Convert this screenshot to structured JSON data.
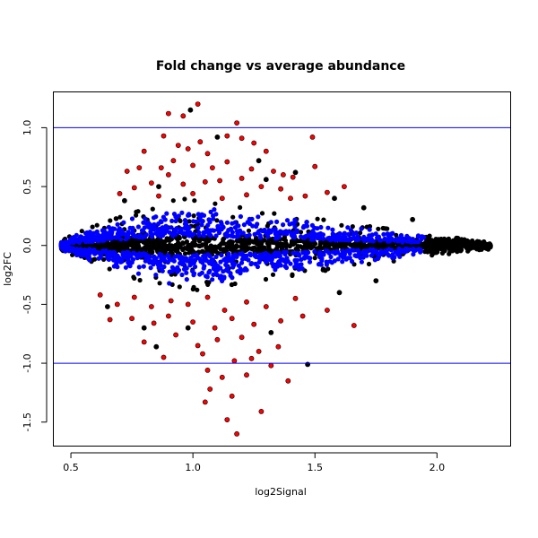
{
  "chart_data": {
    "type": "scatter",
    "title": "Fold change vs average abundance",
    "xlabel": "log2Signal",
    "ylabel": "log2FC",
    "xlim": [
      0.43,
      2.3
    ],
    "ylim": [
      -1.7,
      1.3
    ],
    "x_ticks": [
      0.5,
      1.0,
      1.5,
      2.0
    ],
    "x_tick_labels": [
      "0.5",
      "1.0",
      "1.5",
      "2.0"
    ],
    "y_ticks": [
      -1.5,
      -1.0,
      -0.5,
      0.0,
      0.5,
      1.0
    ],
    "y_tick_labels": [
      "-1.5",
      "-1.0",
      "-0.5",
      "0.0",
      "0.5",
      "1.0"
    ],
    "reference_lines": [
      {
        "y": 1.0,
        "color": "#0000ff"
      },
      {
        "y": -1.0,
        "color": "#0000ff"
      }
    ],
    "grid": false,
    "legend": "none",
    "point_colors": {
      "base": "#000000",
      "mid": "#0000ff",
      "high": "#ff0000"
    },
    "series": [
      {
        "color": "#ff0000",
        "points": [
          [
            0.9,
            1.12
          ],
          [
            0.96,
            1.1
          ],
          [
            1.02,
            1.2
          ],
          [
            1.18,
            1.04
          ],
          [
            1.49,
            0.92
          ],
          [
            0.88,
            0.93
          ],
          [
            1.14,
            0.93
          ],
          [
            1.2,
            0.91
          ],
          [
            1.25,
            0.87
          ],
          [
            1.3,
            0.8
          ],
          [
            0.8,
            0.8
          ],
          [
            0.94,
            0.85
          ],
          [
            0.98,
            0.82
          ],
          [
            1.03,
            0.88
          ],
          [
            1.06,
            0.78
          ],
          [
            0.73,
            0.63
          ],
          [
            0.78,
            0.66
          ],
          [
            0.87,
            0.66
          ],
          [
            0.92,
            0.72
          ],
          [
            1.0,
            0.68
          ],
          [
            1.08,
            0.66
          ],
          [
            1.14,
            0.71
          ],
          [
            1.24,
            0.65
          ],
          [
            1.33,
            0.63
          ],
          [
            1.37,
            0.6
          ],
          [
            1.41,
            0.58
          ],
          [
            1.5,
            0.67
          ],
          [
            0.76,
            0.49
          ],
          [
            0.83,
            0.53
          ],
          [
            0.9,
            0.6
          ],
          [
            0.96,
            0.52
          ],
          [
            1.05,
            0.54
          ],
          [
            1.11,
            0.55
          ],
          [
            1.2,
            0.57
          ],
          [
            1.28,
            0.5
          ],
          [
            1.36,
            0.48
          ],
          [
            1.46,
            0.42
          ],
          [
            1.62,
            0.5
          ],
          [
            0.7,
            0.44
          ],
          [
            0.86,
            0.42
          ],
          [
            1.0,
            0.44
          ],
          [
            1.12,
            0.4
          ],
          [
            1.22,
            0.43
          ],
          [
            1.4,
            0.4
          ],
          [
            1.55,
            0.45
          ],
          [
            0.62,
            -0.42
          ],
          [
            0.69,
            -0.5
          ],
          [
            0.76,
            -0.44
          ],
          [
            0.83,
            -0.52
          ],
          [
            0.91,
            -0.47
          ],
          [
            0.98,
            -0.5
          ],
          [
            1.06,
            -0.44
          ],
          [
            1.13,
            -0.55
          ],
          [
            1.22,
            -0.48
          ],
          [
            1.3,
            -0.52
          ],
          [
            1.42,
            -0.45
          ],
          [
            1.55,
            -0.55
          ],
          [
            1.66,
            -0.68
          ],
          [
            0.66,
            -0.63
          ],
          [
            0.75,
            -0.62
          ],
          [
            0.84,
            -0.66
          ],
          [
            0.9,
            -0.6
          ],
          [
            1.0,
            -0.65
          ],
          [
            1.09,
            -0.7
          ],
          [
            1.16,
            -0.62
          ],
          [
            1.25,
            -0.67
          ],
          [
            1.36,
            -0.64
          ],
          [
            1.45,
            -0.6
          ],
          [
            0.8,
            -0.82
          ],
          [
            0.93,
            -0.76
          ],
          [
            1.02,
            -0.85
          ],
          [
            1.1,
            -0.8
          ],
          [
            1.2,
            -0.78
          ],
          [
            1.27,
            -0.9
          ],
          [
            1.35,
            -0.86
          ],
          [
            0.88,
            -0.95
          ],
          [
            1.04,
            -0.92
          ],
          [
            1.17,
            -0.98
          ],
          [
            1.24,
            -0.96
          ],
          [
            1.32,
            -1.02
          ],
          [
            1.06,
            -1.06
          ],
          [
            1.12,
            -1.12
          ],
          [
            1.22,
            -1.1
          ],
          [
            1.39,
            -1.15
          ],
          [
            1.07,
            -1.22
          ],
          [
            1.16,
            -1.28
          ],
          [
            1.05,
            -1.33
          ],
          [
            1.28,
            -1.41
          ],
          [
            1.14,
            -1.48
          ],
          [
            1.18,
            -1.6
          ]
        ]
      },
      {
        "color": "#000000",
        "points": [
          [
            0.99,
            1.15
          ],
          [
            1.1,
            0.92
          ],
          [
            1.27,
            0.72
          ],
          [
            1.42,
            0.62
          ],
          [
            1.58,
            0.4
          ],
          [
            0.72,
            0.38
          ],
          [
            0.86,
            0.5
          ],
          [
            1.3,
            0.56
          ],
          [
            1.7,
            0.32
          ],
          [
            0.8,
            -0.7
          ],
          [
            0.85,
            -0.86
          ],
          [
            0.98,
            -0.7
          ],
          [
            1.32,
            -0.74
          ],
          [
            1.47,
            -1.01
          ],
          [
            1.6,
            -0.4
          ],
          [
            1.75,
            -0.3
          ],
          [
            0.65,
            -0.52
          ],
          [
            1.9,
            0.22
          ],
          [
            2.1,
            0.05
          ],
          [
            2.17,
            -0.03
          ]
        ]
      }
    ],
    "density": {
      "point_count": 2600,
      "x_range": [
        0.46,
        2.22
      ],
      "x_peak": 0.75,
      "spread_max": 0.38,
      "spread_min": 0.03
    }
  }
}
